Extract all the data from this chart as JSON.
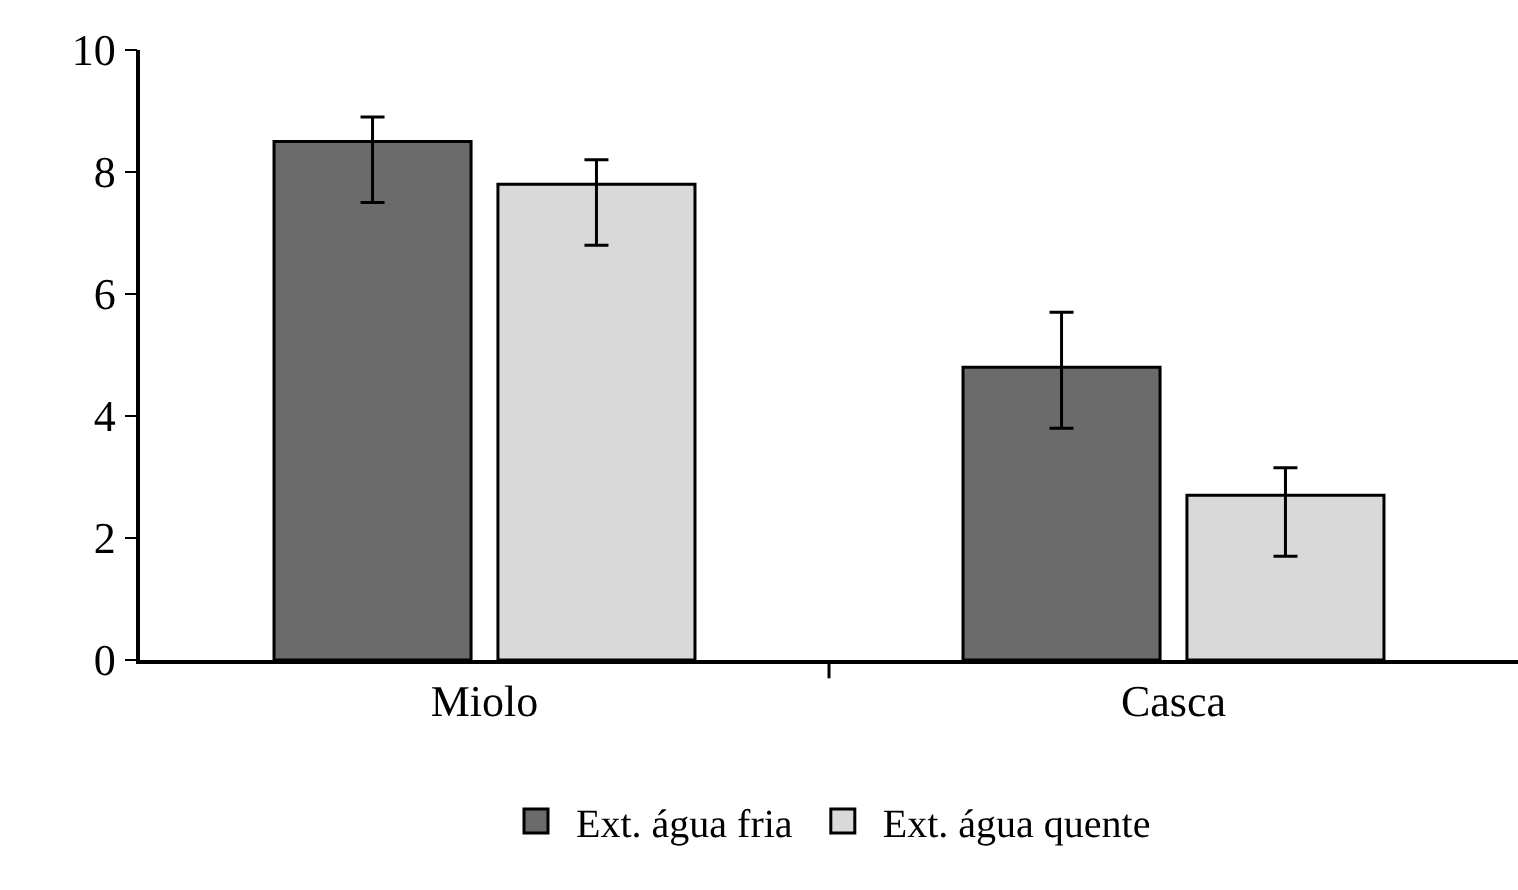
{
  "chart_data": {
    "type": "bar",
    "categories": [
      "Miolo",
      "Casca"
    ],
    "series": [
      {
        "name": "Ext. água fria",
        "color": "#6b6b6b",
        "values": [
          8.5,
          4.8
        ],
        "errors": [
          [
            7.5,
            8.9
          ],
          [
            3.8,
            5.7
          ]
        ]
      },
      {
        "name": "Ext. água quente",
        "color": "#d9d9d9",
        "values": [
          7.8,
          2.7
        ],
        "errors": [
          [
            6.8,
            8.2
          ],
          [
            1.7,
            3.15
          ]
        ]
      }
    ],
    "ylim": [
      0,
      10
    ],
    "yticks": [
      0,
      2,
      4,
      6,
      8,
      10
    ],
    "legend": "bottom"
  }
}
